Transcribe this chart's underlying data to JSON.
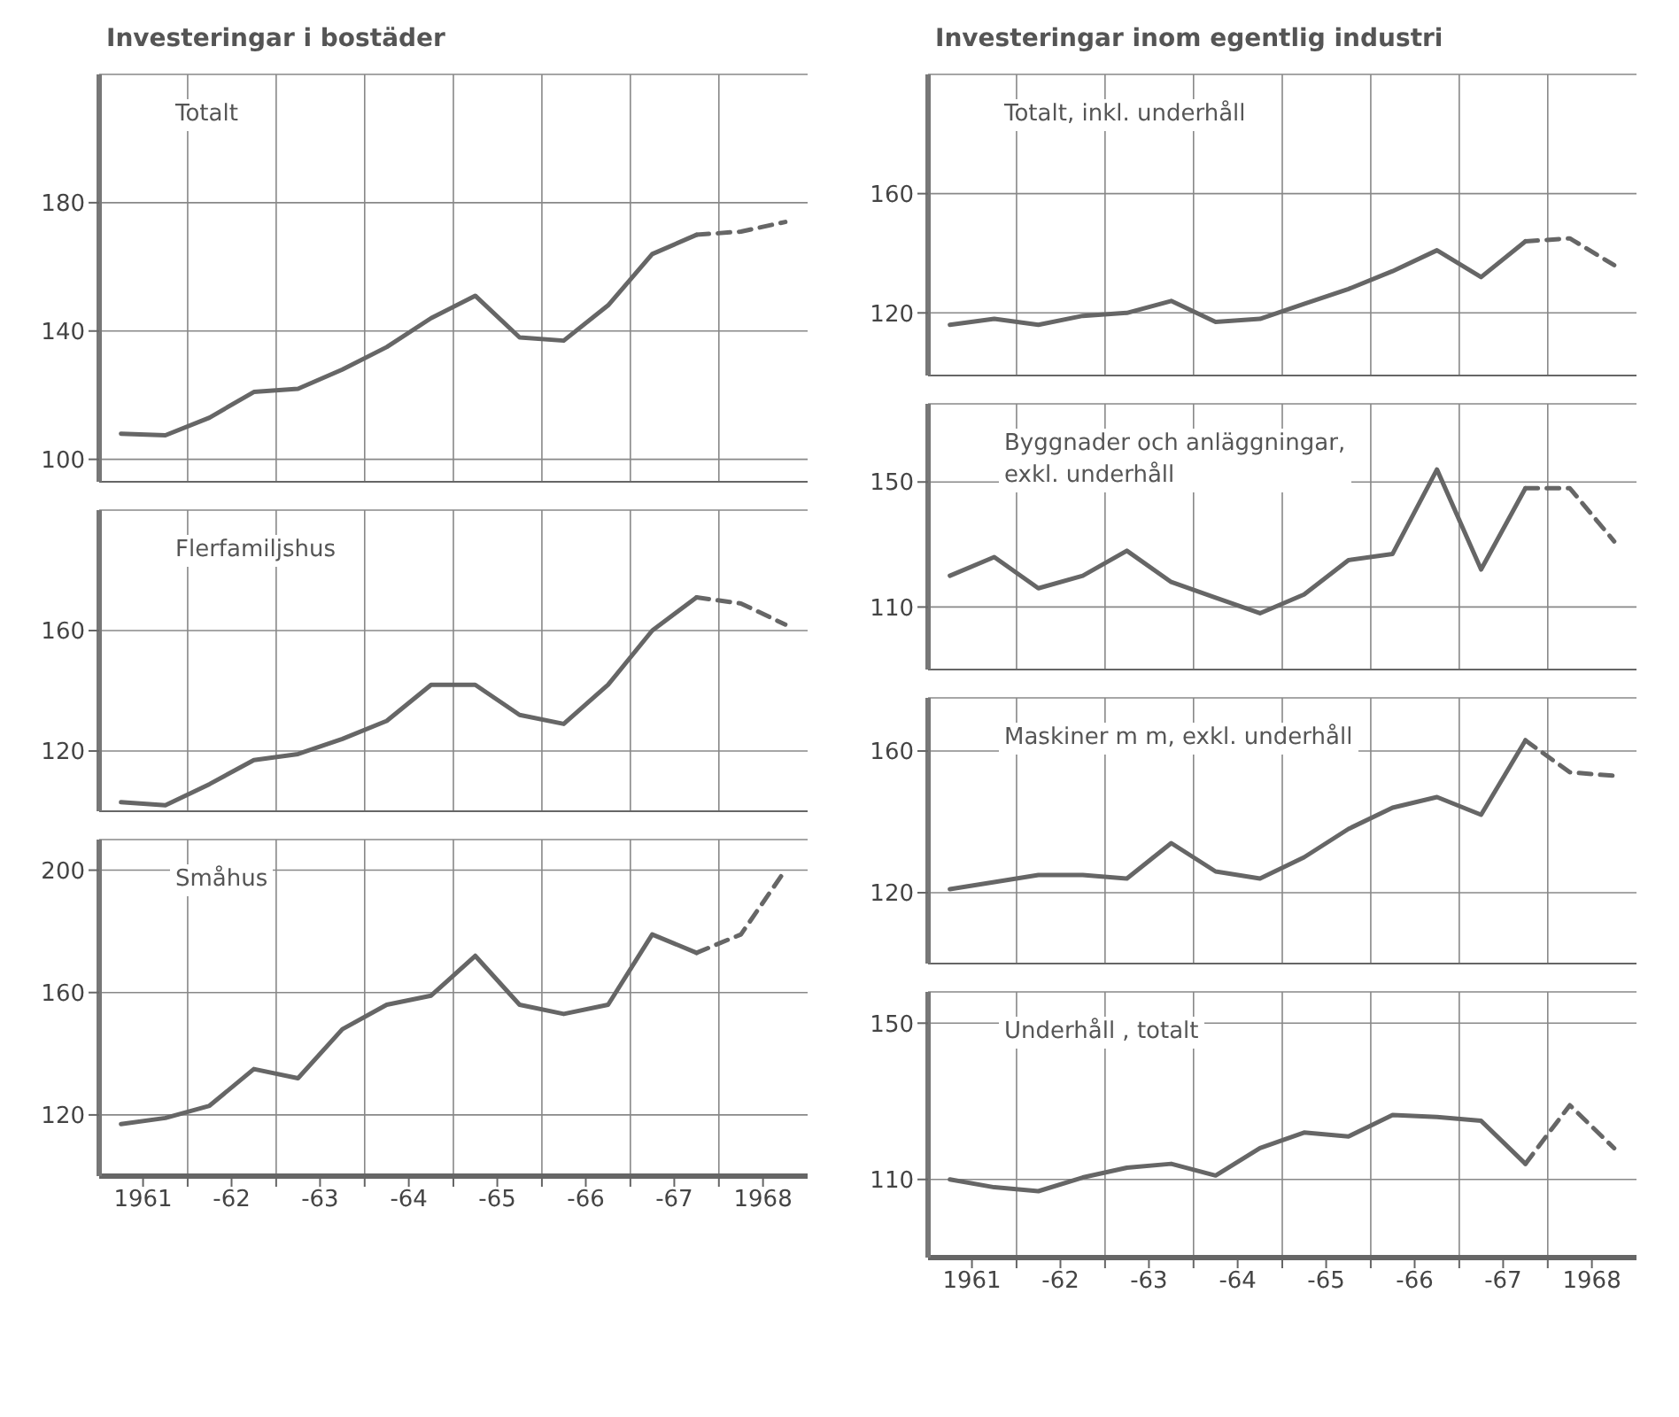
{
  "chart_data": [
    {
      "type": "line",
      "title": "Investeringar i bostäder",
      "subtitle": "Totalt",
      "x": [
        "1961-04",
        "1961-10",
        "1962-04",
        "1962-10",
        "1963-04",
        "1963-10",
        "1964-04",
        "1964-10",
        "1965-04",
        "1965-10",
        "1966-04",
        "1966-10",
        "1967-04",
        "1967-10",
        "1968-04",
        "1968-10"
      ],
      "series": [
        {
          "color": "#666666",
          "line_style": "solid",
          "values": [
            108,
            107.5,
            113,
            121,
            122,
            128,
            135,
            144,
            151,
            138,
            137,
            148,
            164,
            170,
            null,
            null
          ]
        },
        {
          "color": "#666666",
          "line_style": "dashed",
          "values": [
            null,
            null,
            null,
            null,
            null,
            null,
            null,
            null,
            null,
            null,
            null,
            null,
            null,
            170,
            171,
            174
          ]
        }
      ],
      "xlim": [
        "1961-01",
        "1969-01"
      ],
      "xticks": [
        {
          "value": "1962-01",
          "label": null
        },
        {
          "value": "1963-01",
          "label": null
        },
        {
          "value": "1964-01",
          "label": null
        },
        {
          "value": "1965-01",
          "label": null
        },
        {
          "value": "1966-01",
          "label": null
        },
        {
          "value": "1967-01",
          "label": null
        },
        {
          "value": "1968-01",
          "label": null
        }
      ],
      "ylim": [
        93,
        220
      ],
      "yticks": [
        100,
        140,
        180
      ],
      "grid": true,
      "marker": "none",
      "tick_labels": "y"
    },
    {
      "type": "line",
      "subtitle": "Flerfamiljshus",
      "x": [
        "1961-04",
        "1961-10",
        "1962-04",
        "1962-10",
        "1963-04",
        "1963-10",
        "1964-04",
        "1964-10",
        "1965-04",
        "1965-10",
        "1966-04",
        "1966-10",
        "1967-04",
        "1967-10",
        "1968-04",
        "1968-10"
      ],
      "series": [
        {
          "color": "#666666",
          "line_style": "solid",
          "values": [
            103,
            102,
            109,
            117,
            119,
            124,
            130,
            142,
            142,
            132,
            129,
            142,
            160,
            171,
            null,
            null
          ]
        },
        {
          "color": "#666666",
          "line_style": "dashed",
          "values": [
            null,
            null,
            null,
            null,
            null,
            null,
            null,
            null,
            null,
            null,
            null,
            null,
            null,
            171,
            169,
            162
          ]
        }
      ],
      "xlim": [
        "1961-01",
        "1969-01"
      ],
      "xticks": [
        {
          "value": "1962-01",
          "label": null
        },
        {
          "value": "1963-01",
          "label": null
        },
        {
          "value": "1964-01",
          "label": null
        },
        {
          "value": "1965-01",
          "label": null
        },
        {
          "value": "1966-01",
          "label": null
        },
        {
          "value": "1967-01",
          "label": null
        },
        {
          "value": "1968-01",
          "label": null
        }
      ],
      "ylim": [
        100,
        200
      ],
      "yticks": [
        120,
        160
      ],
      "grid": true,
      "marker": "none",
      "tick_labels": "y"
    },
    {
      "type": "line",
      "subtitle": "Småhus",
      "x": [
        "1961-04",
        "1961-10",
        "1962-04",
        "1962-10",
        "1963-04",
        "1963-10",
        "1964-04",
        "1964-10",
        "1965-04",
        "1965-10",
        "1966-04",
        "1966-10",
        "1967-04",
        "1967-10",
        "1968-04",
        "1968-10"
      ],
      "series": [
        {
          "color": "#666666",
          "line_style": "solid",
          "values": [
            117,
            119,
            123,
            135,
            132,
            148,
            156,
            159,
            172,
            156,
            153,
            156,
            179,
            173,
            null,
            null
          ]
        },
        {
          "color": "#666666",
          "line_style": "dashed",
          "values": [
            null,
            null,
            null,
            null,
            null,
            null,
            null,
            null,
            null,
            null,
            null,
            null,
            null,
            173,
            179,
            200
          ]
        }
      ],
      "xlim": [
        "1961-01",
        "1969-01"
      ],
      "xticks": [
        {
          "value": "1961-07",
          "label": "1961"
        },
        {
          "value": "1962-01",
          "label": null
        },
        {
          "value": "1962-07",
          "label": "-62"
        },
        {
          "value": "1963-01",
          "label": null
        },
        {
          "value": "1963-07",
          "label": "-63"
        },
        {
          "value": "1964-01",
          "label": null
        },
        {
          "value": "1964-07",
          "label": "-64"
        },
        {
          "value": "1965-01",
          "label": null
        },
        {
          "value": "1965-07",
          "label": "-65"
        },
        {
          "value": "1966-01",
          "label": null
        },
        {
          "value": "1966-07",
          "label": "-66"
        },
        {
          "value": "1967-01",
          "label": null
        },
        {
          "value": "1967-07",
          "label": "-67"
        },
        {
          "value": "1968-01",
          "label": null
        },
        {
          "value": "1968-07",
          "label": "1968"
        }
      ],
      "ylim": [
        100,
        210
      ],
      "yticks": [
        120,
        160,
        200
      ],
      "grid": true,
      "marker": "none"
    },
    {
      "type": "line",
      "title": "Investeringar inom egentlig industri",
      "subtitle": "Totalt, inkl. underhåll",
      "x": [
        "1961-04",
        "1961-10",
        "1962-04",
        "1962-10",
        "1963-04",
        "1963-10",
        "1964-04",
        "1964-10",
        "1965-04",
        "1965-10",
        "1966-04",
        "1966-10",
        "1967-04",
        "1967-10",
        "1968-04",
        "1968-10"
      ],
      "series": [
        {
          "color": "#666666",
          "line_style": "solid",
          "values": [
            116,
            118,
            116,
            119,
            120,
            124,
            117,
            118,
            123,
            128,
            134,
            141,
            132,
            144,
            null,
            null
          ]
        },
        {
          "color": "#666666",
          "line_style": "dashed",
          "values": [
            null,
            null,
            null,
            null,
            null,
            null,
            null,
            null,
            null,
            null,
            null,
            null,
            null,
            144,
            145,
            136
          ]
        }
      ],
      "xlim": [
        "1961-01",
        "1969-01"
      ],
      "xticks": [
        {
          "value": "1962-01",
          "label": null
        },
        {
          "value": "1963-01",
          "label": null
        },
        {
          "value": "1964-01",
          "label": null
        },
        {
          "value": "1965-01",
          "label": null
        },
        {
          "value": "1966-01",
          "label": null
        },
        {
          "value": "1967-01",
          "label": null
        },
        {
          "value": "1968-01",
          "label": null
        }
      ],
      "ylim": [
        99,
        200
      ],
      "yticks": [
        120,
        160
      ],
      "grid": true,
      "marker": "none",
      "tick_labels": "y"
    },
    {
      "type": "line",
      "subtitle": "Byggnader och anläggningar,\nexkl. underhåll",
      "x": [
        "1961-04",
        "1961-10",
        "1962-04",
        "1962-10",
        "1963-04",
        "1963-10",
        "1964-04",
        "1964-10",
        "1965-04",
        "1965-10",
        "1966-04",
        "1966-10",
        "1967-04",
        "1967-10",
        "1968-04",
        "1968-10"
      ],
      "series": [
        {
          "color": "#666666",
          "line_style": "solid",
          "values": [
            120,
            126,
            116,
            120,
            128,
            118,
            113,
            108,
            114,
            125,
            127,
            154,
            122,
            148,
            null,
            null
          ]
        },
        {
          "color": "#666666",
          "line_style": "dashed",
          "values": [
            null,
            null,
            null,
            null,
            null,
            null,
            null,
            null,
            null,
            null,
            null,
            null,
            null,
            148,
            148,
            131
          ]
        }
      ],
      "xlim": [
        "1961-01",
        "1969-01"
      ],
      "xticks": [
        {
          "value": "1962-01",
          "label": null
        },
        {
          "value": "1963-01",
          "label": null
        },
        {
          "value": "1964-01",
          "label": null
        },
        {
          "value": "1965-01",
          "label": null
        },
        {
          "value": "1966-01",
          "label": null
        },
        {
          "value": "1967-01",
          "label": null
        },
        {
          "value": "1968-01",
          "label": null
        }
      ],
      "ylim": [
        90,
        175
      ],
      "yticks": [
        110,
        150
      ],
      "grid": true,
      "marker": "none",
      "tick_labels": "y"
    },
    {
      "type": "line",
      "subtitle": "Maskiner m m, exkl. underhåll",
      "x": [
        "1961-04",
        "1961-10",
        "1962-04",
        "1962-10",
        "1963-04",
        "1963-10",
        "1964-04",
        "1964-10",
        "1965-04",
        "1965-10",
        "1966-04",
        "1966-10",
        "1967-04",
        "1967-10",
        "1968-04",
        "1968-10"
      ],
      "series": [
        {
          "color": "#666666",
          "line_style": "solid",
          "values": [
            121,
            123,
            125,
            125,
            124,
            134,
            126,
            124,
            130,
            138,
            144,
            147,
            142,
            163,
            null,
            null
          ]
        },
        {
          "color": "#666666",
          "line_style": "dashed",
          "values": [
            null,
            null,
            null,
            null,
            null,
            null,
            null,
            null,
            null,
            null,
            null,
            null,
            null,
            163,
            154,
            153
          ]
        }
      ],
      "xlim": [
        "1961-01",
        "1969-01"
      ],
      "xticks": [
        {
          "value": "1962-01",
          "label": null
        },
        {
          "value": "1963-01",
          "label": null
        },
        {
          "value": "1964-01",
          "label": null
        },
        {
          "value": "1965-01",
          "label": null
        },
        {
          "value": "1966-01",
          "label": null
        },
        {
          "value": "1967-01",
          "label": null
        },
        {
          "value": "1968-01",
          "label": null
        }
      ],
      "ylim": [
        100,
        175
      ],
      "yticks": [
        120,
        160
      ],
      "grid": true,
      "marker": "none",
      "tick_labels": "y"
    },
    {
      "type": "line",
      "subtitle": "Underhåll , totalt",
      "x": [
        "1961-04",
        "1961-10",
        "1962-04",
        "1962-10",
        "1963-04",
        "1963-10",
        "1964-04",
        "1964-10",
        "1965-04",
        "1965-10",
        "1966-04",
        "1966-10",
        "1967-04",
        "1967-10",
        "1968-04",
        "1968-10"
      ],
      "series": [
        {
          "color": "#666666",
          "line_style": "solid",
          "values": [
            110,
            108,
            107,
            110.5,
            113,
            114,
            111,
            118,
            122,
            121,
            126.5,
            126,
            125,
            114,
            null,
            null
          ]
        },
        {
          "color": "#666666",
          "line_style": "dashed",
          "values": [
            null,
            null,
            null,
            null,
            null,
            null,
            null,
            null,
            null,
            null,
            null,
            null,
            null,
            114,
            129,
            118
          ]
        }
      ],
      "xlim": [
        "1961-01",
        "1969-01"
      ],
      "xticks": [
        {
          "value": "1961-07",
          "label": "1961"
        },
        {
          "value": "1962-01",
          "label": null
        },
        {
          "value": "1962-07",
          "label": "-62"
        },
        {
          "value": "1963-01",
          "label": null
        },
        {
          "value": "1963-07",
          "label": "-63"
        },
        {
          "value": "1964-01",
          "label": null
        },
        {
          "value": "1964-07",
          "label": "-64"
        },
        {
          "value": "1965-01",
          "label": null
        },
        {
          "value": "1965-07",
          "label": "-65"
        },
        {
          "value": "1966-01",
          "label": null
        },
        {
          "value": "1966-07",
          "label": "-66"
        },
        {
          "value": "1967-01",
          "label": null
        },
        {
          "value": "1967-07",
          "label": "-67"
        },
        {
          "value": "1968-01",
          "label": null
        },
        {
          "value": "1968-07",
          "label": "1968"
        }
      ],
      "ylim": [
        90,
        158
      ],
      "yticks": [
        110,
        150
      ],
      "grid": true,
      "marker": "none"
    }
  ]
}
